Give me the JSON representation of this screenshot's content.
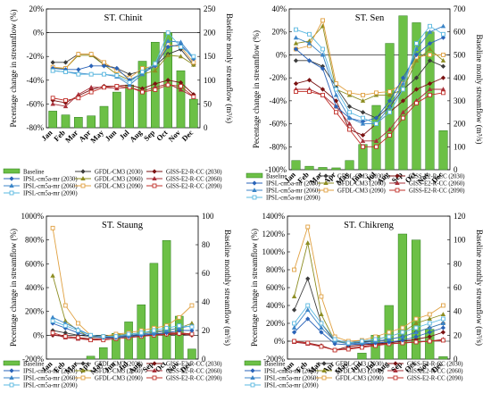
{
  "colors": {
    "baseline": "#6cc046",
    "gfdl2030": "#3c3c3c",
    "gfdl2060": "#8d8d22",
    "gfdl2090": "#e0a040",
    "giss2030": "#7a1212",
    "giss2060": "#a8303a",
    "giss2090": "#c0302a",
    "ipsl2030": "#2a63b8",
    "ipsl2060": "#3d86c8",
    "ipsl2090": "#5ab8e0"
  },
  "legend_labels": {
    "baseline": "Baseline",
    "gfdl2030": "GFDL-CM3 (2030)",
    "gfdl2060": "GFDL-CM3 (2060)",
    "gfdl2090": "GFDL-CM3 (2090)",
    "giss2030": "GISS-E2-R-CC (2030)",
    "giss2060": "GISS-E2-R-CC (2060)",
    "giss2090": "GISS-E2-R-CC (2090)",
    "ipsl2030": "IPSL-cm5a-mr (2030)",
    "ipsl2060": "IPSL-cm5a-mr (2060)",
    "ipsl2090": "IPSL-cm5a-mr (2090)"
  },
  "chart_data": [
    {
      "type": "bar+line",
      "title": "ST. Chinit",
      "categories": [
        "Jan",
        "Feb",
        "Mar",
        "Apr",
        "May",
        "Jun",
        "Jul",
        "Aug",
        "Sep",
        "Oct",
        "Nov",
        "Dec"
      ],
      "ylabel": "Pecentage change in streamflow (%)",
      "y2label": "Baseline monly streamflow (m³/s)",
      "ylim": [
        -80,
        20
      ],
      "yticks": [
        "20%",
        "0%",
        "-20%",
        "-40%",
        "-60%",
        "-80%"
      ],
      "y2lim": [
        0,
        250
      ],
      "y2ticks": [
        "0",
        "50",
        "100",
        "150",
        "200",
        "250"
      ],
      "baseline": [
        35,
        27,
        22,
        25,
        45,
        75,
        90,
        140,
        180,
        200,
        120,
        60
      ],
      "series": [
        {
          "key": "gfdl2030",
          "values": [
            -25,
            -25,
            -18,
            -18,
            -27,
            -30,
            -35,
            -32,
            -28,
            -18,
            -14,
            -27
          ]
        },
        {
          "key": "gfdl2060",
          "values": [
            -30,
            -30,
            -19,
            -19,
            -27,
            -35,
            -40,
            -35,
            -32,
            -19,
            -20,
            -27
          ]
        },
        {
          "key": "gfdl2090",
          "values": [
            -29,
            -30,
            -18,
            -18,
            -25,
            -32,
            -38,
            -30,
            -28,
            -10,
            -12,
            -25
          ]
        },
        {
          "key": "giss2030",
          "values": [
            -57,
            -59,
            -53,
            -48,
            -45,
            -45,
            -44,
            -47,
            -43,
            -40,
            -42,
            -52
          ]
        },
        {
          "key": "giss2060",
          "values": [
            -60,
            -62,
            -52,
            -46,
            -46,
            -47,
            -46,
            -49,
            -46,
            -43,
            -48,
            -54
          ]
        },
        {
          "key": "giss2090",
          "values": [
            -55,
            -57,
            -55,
            -50,
            -46,
            -45,
            -46,
            -50,
            -48,
            -44,
            -45,
            -54
          ]
        },
        {
          "key": "ipsl2030",
          "values": [
            -30,
            -31,
            -31,
            -28,
            -28,
            -30,
            -40,
            -34,
            -28,
            -12,
            -10,
            -22
          ]
        },
        {
          "key": "ipsl2060",
          "values": [
            -32,
            -33,
            -34,
            -35,
            -35,
            -37,
            -44,
            -35,
            -27,
            -7,
            -8,
            -21
          ]
        },
        {
          "key": "ipsl2090",
          "values": [
            -32,
            -33,
            -35,
            -35,
            -35,
            -36,
            -42,
            -33,
            -26,
            0,
            -12,
            -20
          ]
        }
      ]
    },
    {
      "type": "bar+line",
      "title": "ST. Sen",
      "categories": [
        "Jan",
        "Feb",
        "Mar",
        "Apr",
        "May",
        "Jun",
        "Jul",
        "Aug",
        "Sep",
        "Oct",
        "Nov",
        "Dec"
      ],
      "ylabel": "Pecentage change in streamflow (%)",
      "y2label": "Baseline monly streamflow (m³/s)",
      "ylim": [
        -100,
        40
      ],
      "yticks": [
        "40%",
        "20%",
        "0%",
        "-20%",
        "-40%",
        "-60%",
        "-80%",
        "-100%"
      ],
      "y2lim": [
        0,
        700
      ],
      "y2ticks": [
        "0",
        "100",
        "200",
        "300",
        "400",
        "500",
        "600",
        "700"
      ],
      "baseline": [
        40,
        15,
        10,
        8,
        40,
        110,
        280,
        550,
        670,
        640,
        600,
        170
      ],
      "series": [
        {
          "key": "gfdl2030",
          "values": [
            -5,
            -5,
            -10,
            -28,
            -45,
            -50,
            -55,
            -45,
            -30,
            -20,
            -5,
            -10
          ]
        },
        {
          "key": "gfdl2060",
          "values": [
            10,
            12,
            25,
            -30,
            -35,
            -40,
            -35,
            -35,
            -30,
            -5,
            5,
            -5
          ]
        },
        {
          "key": "gfdl2090",
          "values": [
            5,
            8,
            30,
            -25,
            -33,
            -35,
            -33,
            -32,
            -25,
            -2,
            0,
            0
          ]
        },
        {
          "key": "giss2030",
          "values": [
            -25,
            -22,
            -30,
            -40,
            -65,
            -70,
            -60,
            -50,
            -40,
            -30,
            -25,
            -20
          ]
        },
        {
          "key": "giss2060",
          "values": [
            -30,
            -30,
            -35,
            -45,
            -60,
            -75,
            -75,
            -65,
            -50,
            -40,
            -30,
            -30
          ]
        },
        {
          "key": "giss2090",
          "values": [
            -32,
            -32,
            -35,
            -50,
            -65,
            -80,
            -80,
            -70,
            -55,
            -42,
            -35,
            -33
          ]
        },
        {
          "key": "ipsl2030",
          "values": [
            5,
            -5,
            -12,
            -45,
            -55,
            -58,
            -55,
            -40,
            -20,
            0,
            10,
            15
          ]
        },
        {
          "key": "ipsl2060",
          "values": [
            15,
            10,
            0,
            -35,
            -55,
            -60,
            -60,
            -45,
            -25,
            5,
            20,
            25
          ]
        },
        {
          "key": "ipsl2090",
          "values": [
            22,
            18,
            5,
            -30,
            -50,
            -55,
            -60,
            -50,
            -30,
            10,
            25,
            18
          ]
        }
      ]
    },
    {
      "type": "bar+line",
      "title": "ST. Staung",
      "categories": [
        "Jan",
        "Feb",
        "Mar",
        "Apr",
        "May",
        "Jun",
        "Jul",
        "Aug",
        "Sep",
        "Oct",
        "Nov",
        "Dec"
      ],
      "ylabel": "Pecentage change in streamflow (%)",
      "y2label": "Baseline monthly streamflow (m³/s)",
      "ylim": [
        -200,
        1000
      ],
      "yticks": [
        "1000%",
        "800%",
        "600%",
        "400%",
        "200%",
        "0%",
        "-200%"
      ],
      "y2lim": [
        0,
        100
      ],
      "y2ticks": [
        "0",
        "20",
        "40",
        "60",
        "80",
        "100"
      ],
      "baseline": [
        0,
        0,
        0,
        2,
        8,
        18,
        26,
        38,
        67,
        83,
        30,
        7
      ],
      "series": [
        {
          "key": "gfdl2030",
          "values": [
            40,
            20,
            0,
            -10,
            -15,
            -10,
            -5,
            0,
            5,
            10,
            20,
            10
          ]
        },
        {
          "key": "gfdl2060",
          "values": [
            500,
            120,
            40,
            -20,
            -10,
            0,
            10,
            20,
            30,
            40,
            60,
            100
          ]
        },
        {
          "key": "gfdl2090",
          "values": [
            900,
            250,
            100,
            0,
            -10,
            10,
            20,
            40,
            60,
            80,
            150,
            250
          ]
        },
        {
          "key": "giss2030",
          "values": [
            0,
            -10,
            -20,
            -30,
            -30,
            -20,
            -10,
            -5,
            0,
            5,
            10,
            0
          ]
        },
        {
          "key": "giss2060",
          "values": [
            10,
            -20,
            -30,
            -40,
            -30,
            -20,
            -10,
            0,
            10,
            20,
            20,
            10
          ]
        },
        {
          "key": "giss2090",
          "values": [
            20,
            -10,
            -20,
            -40,
            -40,
            -30,
            -20,
            -10,
            0,
            10,
            15,
            10
          ]
        },
        {
          "key": "ipsl2030",
          "values": [
            100,
            60,
            20,
            -10,
            -20,
            -20,
            -10,
            0,
            10,
            20,
            40,
            40
          ]
        },
        {
          "key": "ipsl2060",
          "values": [
            150,
            100,
            50,
            0,
            -10,
            -10,
            0,
            10,
            20,
            40,
            60,
            80
          ]
        },
        {
          "key": "ipsl2090",
          "values": [
            120,
            80,
            40,
            0,
            -10,
            -10,
            10,
            20,
            40,
            60,
            80,
            70
          ]
        }
      ]
    },
    {
      "type": "bar+line",
      "title": "ST. Chikreng",
      "categories": [
        "Jan",
        "Feb",
        "Mar",
        "Apr",
        "May",
        "Jun",
        "Jul",
        "Aug",
        "Sep",
        "Oct",
        "Nov",
        "Dec"
      ],
      "ylabel": "Pecentage change in streamflow (%)",
      "y2label": "Baseline monthly streamflow (m³/s)",
      "ylim": [
        -200,
        1400
      ],
      "yticks": [
        "1400%",
        "1200%",
        "1000%",
        "800%",
        "600%",
        "400%",
        "200%",
        "0%",
        "-200%"
      ],
      "y2lim": [
        0,
        120
      ],
      "y2ticks": [
        "0",
        "20",
        "40",
        "60",
        "80",
        "100",
        "120"
      ],
      "baseline": [
        0,
        0,
        0,
        0,
        0,
        5,
        20,
        45,
        105,
        100,
        25,
        2
      ],
      "series": [
        {
          "key": "gfdl2030",
          "values": [
            350,
            700,
            200,
            0,
            -20,
            -10,
            0,
            20,
            50,
            100,
            150,
            200
          ]
        },
        {
          "key": "gfdl2060",
          "values": [
            500,
            1100,
            300,
            0,
            -20,
            0,
            20,
            50,
            100,
            200,
            250,
            300
          ]
        },
        {
          "key": "gfdl2090",
          "values": [
            800,
            1280,
            500,
            50,
            0,
            10,
            50,
            100,
            150,
            250,
            300,
            400
          ]
        },
        {
          "key": "giss2030",
          "values": [
            0,
            -20,
            -50,
            -100,
            -60,
            -40,
            -30,
            -20,
            0,
            20,
            50,
            100
          ]
        },
        {
          "key": "giss2060",
          "values": [
            -10,
            -30,
            -60,
            -100,
            -80,
            -60,
            -40,
            -30,
            -20,
            -10,
            0,
            20
          ]
        },
        {
          "key": "giss2090",
          "values": [
            0,
            -20,
            -60,
            -100,
            -90,
            -70,
            -50,
            -30,
            -20,
            -10,
            0,
            10
          ]
        },
        {
          "key": "ipsl2030",
          "values": [
            100,
            250,
            100,
            -30,
            -40,
            -30,
            -20,
            -10,
            10,
            50,
            100,
            150
          ]
        },
        {
          "key": "ipsl2060",
          "values": [
            150,
            350,
            150,
            0,
            -30,
            -20,
            0,
            20,
            50,
            100,
            150,
            200
          ]
        },
        {
          "key": "ipsl2090",
          "values": [
            200,
            400,
            200,
            20,
            -20,
            0,
            20,
            50,
            100,
            150,
            200,
            250
          ]
        }
      ]
    }
  ]
}
